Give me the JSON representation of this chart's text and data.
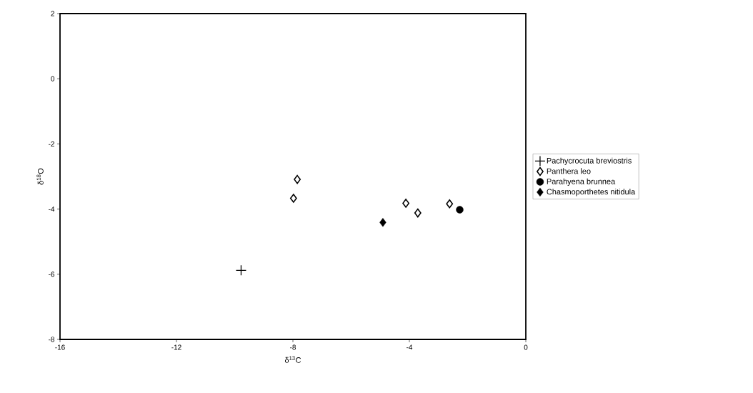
{
  "chart_data": {
    "type": "scatter",
    "xlabel": "δ$^{13}$C",
    "ylabel": "δ$^{18}$O",
    "xlim": [
      -16,
      0
    ],
    "ylim": [
      -8,
      2
    ],
    "xticks": [
      -16,
      -12,
      -8,
      -4,
      0
    ],
    "yticks": [
      -8,
      -6,
      -4,
      -2,
      0,
      2
    ],
    "grid": false,
    "legend": "right",
    "series": [
      {
        "name": "Pachycrocuta breviostris",
        "color": "#000000",
        "marker": "cross",
        "x": [
          -9.78
        ],
        "values": [
          -5.88
        ]
      },
      {
        "name": "Panthera leo",
        "color": "#000000",
        "marker": "diamond",
        "x": [
          -7.85,
          -7.98,
          -4.12,
          -3.71,
          -2.62
        ],
        "values": [
          -3.09,
          -3.67,
          -3.82,
          -4.12,
          -3.84
        ]
      },
      {
        "name": "Parahyena brunnea",
        "color": "#000000",
        "marker": "circle",
        "x": [
          -2.27
        ],
        "values": [
          -4.02
        ]
      },
      {
        "name": "Chasmoporthetes nitidula",
        "color": "#000000",
        "marker": "diamond_filled",
        "x": [
          -4.91
        ],
        "values": [
          -4.41
        ]
      }
    ]
  }
}
